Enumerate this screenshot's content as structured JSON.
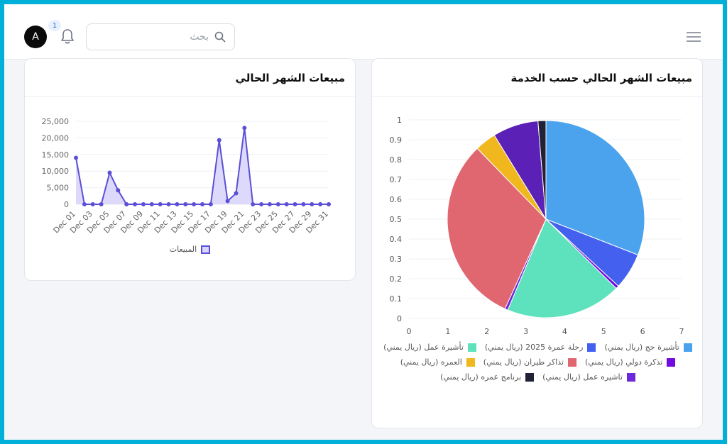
{
  "header": {
    "avatar_letter": "A",
    "notification_count": "1",
    "search_placeholder": "بحث",
    "icons": [
      "menu-icon",
      "search-icon",
      "bell-icon"
    ]
  },
  "line_card": {
    "title": "مبيعات الشهر الحالي",
    "legend_label": "المبيعات"
  },
  "pie_card": {
    "title": "مبيعات الشهر الحالي حسب الخدمة"
  },
  "chart_data": [
    {
      "type": "area",
      "title": "مبيعات الشهر الحالي",
      "xlabel": "",
      "ylabel": "",
      "ylim": [
        0,
        25000
      ],
      "yticks": [
        0,
        5000,
        10000,
        15000,
        20000,
        25000
      ],
      "ytick_labels": [
        "0",
        "5,000",
        "10,000",
        "15,000",
        "20,000",
        "25,000"
      ],
      "x": [
        "Dec 01",
        "Dec 02",
        "Dec 03",
        "Dec 04",
        "Dec 05",
        "Dec 06",
        "Dec 07",
        "Dec 08",
        "Dec 09",
        "Dec 10",
        "Dec 11",
        "Dec 12",
        "Dec 13",
        "Dec 14",
        "Dec 15",
        "Dec 16",
        "Dec 17",
        "Dec 18",
        "Dec 19",
        "Dec 20",
        "Dec 21",
        "Dec 22",
        "Dec 23",
        "Dec 24",
        "Dec 25",
        "Dec 26",
        "Dec 27",
        "Dec 28",
        "Dec 29",
        "Dec 30",
        "Dec 31"
      ],
      "xtick_labels": [
        "Dec 01",
        "Dec 03",
        "Dec 05",
        "Dec 07",
        "Dec 09",
        "Dec 11",
        "Dec 13",
        "Dec 15",
        "Dec 17",
        "Dec 19",
        "Dec 21",
        "Dec 23",
        "Dec 25",
        "Dec 27",
        "Dec 29",
        "Dec 31"
      ],
      "series": [
        {
          "name": "المبيعات",
          "color": "#5b4fd6",
          "fill": "#d8d5fa",
          "values": [
            14000,
            0,
            0,
            0,
            9500,
            4200,
            0,
            0,
            0,
            0,
            0,
            0,
            0,
            0,
            0,
            0,
            0,
            19300,
            1000,
            3300,
            23000,
            0,
            0,
            0,
            0,
            0,
            0,
            0,
            0,
            0,
            0
          ]
        }
      ],
      "grid": true,
      "legend": "bottom"
    },
    {
      "type": "pie",
      "title": "مبيعات الشهر الحالي حسب الخدمة",
      "xlim": [
        0,
        7
      ],
      "ylim": [
        0,
        1
      ],
      "xticks": [
        "0",
        "1",
        "2",
        "3",
        "4",
        "5",
        "6",
        "7"
      ],
      "yticks": [
        "0",
        "0.1",
        "0.2",
        "0.3",
        "0.4",
        "0.5",
        "0.6",
        "0.7",
        "0.8",
        "0.9",
        "1"
      ],
      "grid": true,
      "legend": "bottom",
      "slices": [
        {
          "label": "تأشيرة حج (ريال يمني)",
          "value": 0,
          "color": "#cfe3fb"
        },
        {
          "label": "رحلة عمرة 2025 (ريال يمني)",
          "value": 31,
          "color": "#4aa3ec"
        },
        {
          "label": "تأشيرة عمل (ريال يمني)",
          "value": 6,
          "color": "#4361ee"
        },
        {
          "label": "تذكرة دولي (ريال يمني)",
          "value": 0.5,
          "color": "#7209e0"
        },
        {
          "label": "تاشيره عمل (ريال يمني)",
          "value": 19,
          "color": "#5ee2bd"
        },
        {
          "label": "العمره (ريال يمني)",
          "value": 0.5,
          "color": "#6d28d9"
        },
        {
          "label": "تذاكر طيران (ريال يمني)",
          "value": 31,
          "color": "#e06670"
        },
        {
          "label": "برنامج عمره (ريال يمني)",
          "value": 3.5,
          "color": "#f0b81e"
        },
        {
          "label": "_",
          "value": 7.5,
          "color": "#5b21b6"
        },
        {
          "label": "_",
          "value": 1.3,
          "color": "#222236"
        }
      ],
      "legend_items": [
        {
          "label": "تأشيرة حج (ريال يمني)",
          "color": "#4aa3ec"
        },
        {
          "label": "رحلة عمرة 2025 (ريال يمني)",
          "color": "#4361ee"
        },
        {
          "label": "تأشيرة عمل (ريال يمني)",
          "color": "#5ee2bd"
        },
        {
          "label": "تذكرة دولي (ريال يمني)",
          "color": "#7209e0"
        },
        {
          "label": "تذاكر طيران (ريال يمني)",
          "color": "#e06670"
        },
        {
          "label": "العمره (ريال يمني)",
          "color": "#f0b81e"
        },
        {
          "label": "تاشيره عمل (ريال يمني)",
          "color": "#6d28d9"
        },
        {
          "label": "برنامج عمره (ريال يمني)",
          "color": "#222236"
        }
      ]
    }
  ]
}
